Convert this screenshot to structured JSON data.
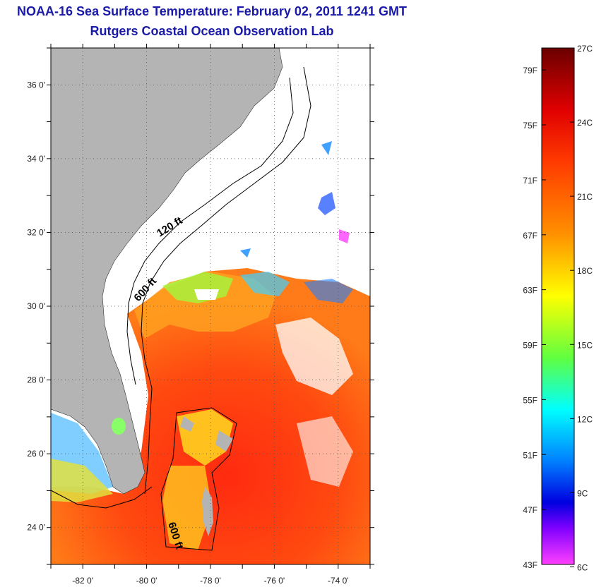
{
  "header": {
    "title": "NOAA-16 Sea Surface Temperature:  February 02, 2011 1241 GMT",
    "subtitle": "Rutgers Coastal Ocean Observation Lab"
  },
  "map": {
    "lon_range": [
      -83.0,
      -73.0
    ],
    "lat_range": [
      23.0,
      37.0
    ],
    "lon_ticks": [
      "-82 0'",
      "-80 0'",
      "-78 0'",
      "-76 0'",
      "-74 0'"
    ],
    "lat_ticks": [
      "36 0'",
      "34 0'",
      "32 0'",
      "30 0'",
      "28 0'",
      "26 0'",
      "24 0'"
    ],
    "contour_labels": [
      "120 ft",
      "600 ft",
      "600 ft"
    ],
    "land_color": "#b4b4b4",
    "ocean_color": "#ffffff"
  },
  "colorbar": {
    "fahrenheit": [
      "79F",
      "75F",
      "71F",
      "67F",
      "63F",
      "59F",
      "55F",
      "51F",
      "47F",
      "43F"
    ],
    "celsius": [
      "27C",
      "24C",
      "21C",
      "18C",
      "15C",
      "12C",
      "9C",
      "6C"
    ],
    "colors": [
      "#7a0000",
      "#ff0000",
      "#ff7f00",
      "#ffff00",
      "#4cff4c",
      "#00ffff",
      "#0060ff",
      "#0000ff",
      "#8a00ff",
      "#ff00ff"
    ]
  }
}
